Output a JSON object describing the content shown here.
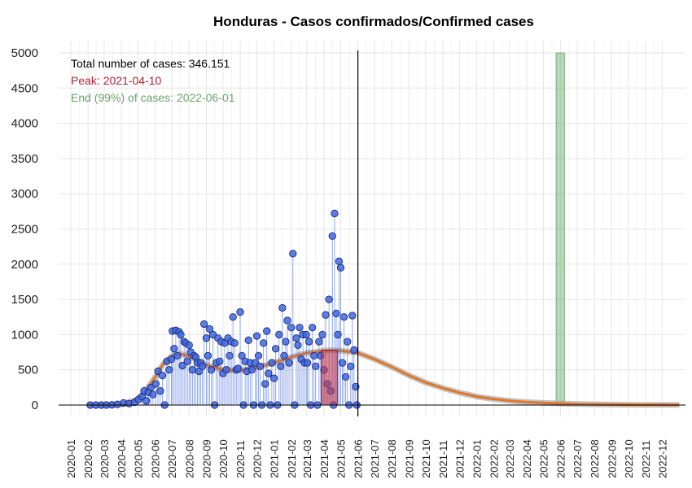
{
  "chart_data": {
    "type": "scatter",
    "title": "Honduras - Casos confirmados/Confirmed cases",
    "xlabel": "",
    "ylabel": "",
    "ylim": [
      0,
      5000
    ],
    "y_ticks": [
      "0",
      "500",
      "1000",
      "1500",
      "2000",
      "2500",
      "3000",
      "3500",
      "4000",
      "4500",
      "5000"
    ],
    "x_tick_labels": [
      "2020-01",
      "2020-02",
      "2020-03",
      "2020-04",
      "2020-05",
      "2020-06",
      "2020-07",
      "2020-08",
      "2020-09",
      "2020-10",
      "2020-11",
      "2020-12",
      "2021-01",
      "2021-02",
      "2021-03",
      "2021-04",
      "2021-05",
      "2021-06",
      "2021-07",
      "2021-08",
      "2021-09",
      "2021-10",
      "2021-11",
      "2021-12",
      "2022-01",
      "2022-02",
      "2022-03",
      "2022-04",
      "2022-05",
      "2022-06",
      "2022-07",
      "2022-08",
      "2022-09",
      "2022-10",
      "2022-11",
      "2022-12"
    ],
    "grid": true,
    "annotations": {
      "total": "Total number of cases: 346.151",
      "peak": "Peak: 2021-04-10",
      "end": "End (99%) of cases: 2022-06-01"
    },
    "colors": {
      "points_fill": "#4169e1",
      "points_stroke": "#1a2a7a",
      "fit_line": "#e0762b",
      "fit_band": "#a9a9a9",
      "peak_band": "#c0394b",
      "end_band": "#7fb77e",
      "today_line": "#000000",
      "peak_text": "#b22234",
      "end_text": "#6aa36a"
    },
    "today_marker": "2021-06-01",
    "peak_band_range": [
      "2021-03-27",
      "2021-04-25"
    ],
    "end_band_range": [
      "2022-05-24",
      "2022-06-08"
    ],
    "series": [
      {
        "type": "scatter",
        "points": [
          [
            "2020-02-05",
            0
          ],
          [
            "2020-02-15",
            0
          ],
          [
            "2020-02-25",
            0
          ],
          [
            "2020-03-05",
            0
          ],
          [
            "2020-03-15",
            3
          ],
          [
            "2020-03-25",
            10
          ],
          [
            "2020-04-05",
            30
          ],
          [
            "2020-04-15",
            20
          ],
          [
            "2020-04-25",
            40
          ],
          [
            "2020-05-02",
            80
          ],
          [
            "2020-05-08",
            120
          ],
          [
            "2020-05-12",
            200
          ],
          [
            "2020-05-16",
            60
          ],
          [
            "2020-05-20",
            180
          ],
          [
            "2020-05-24",
            250
          ],
          [
            "2020-05-28",
            150
          ],
          [
            "2020-06-02",
            300
          ],
          [
            "2020-06-06",
            480
          ],
          [
            "2020-06-10",
            200
          ],
          [
            "2020-06-14",
            420
          ],
          [
            "2020-06-18",
            0
          ],
          [
            "2020-06-22",
            620
          ],
          [
            "2020-06-26",
            500
          ],
          [
            "2020-06-30",
            650
          ],
          [
            "2020-07-02",
            1050
          ],
          [
            "2020-07-05",
            800
          ],
          [
            "2020-07-08",
            1060
          ],
          [
            "2020-07-11",
            700
          ],
          [
            "2020-07-14",
            1040
          ],
          [
            "2020-07-17",
            1000
          ],
          [
            "2020-07-20",
            560
          ],
          [
            "2020-07-23",
            900
          ],
          [
            "2020-07-26",
            880
          ],
          [
            "2020-07-29",
            620
          ],
          [
            "2020-08-01",
            850
          ],
          [
            "2020-08-04",
            750
          ],
          [
            "2020-08-07",
            500
          ],
          [
            "2020-08-10",
            700
          ],
          [
            "2020-08-13",
            680
          ],
          [
            "2020-08-16",
            600
          ],
          [
            "2020-08-19",
            480
          ],
          [
            "2020-08-22",
            600
          ],
          [
            "2020-08-25",
            550
          ],
          [
            "2020-08-28",
            1150
          ],
          [
            "2020-09-01",
            950
          ],
          [
            "2020-09-04",
            700
          ],
          [
            "2020-09-07",
            1080
          ],
          [
            "2020-09-10",
            500
          ],
          [
            "2020-09-13",
            1000
          ],
          [
            "2020-09-16",
            0
          ],
          [
            "2020-09-19",
            600
          ],
          [
            "2020-09-22",
            950
          ],
          [
            "2020-09-25",
            620
          ],
          [
            "2020-09-28",
            900
          ],
          [
            "2020-10-01",
            450
          ],
          [
            "2020-10-04",
            880
          ],
          [
            "2020-10-07",
            500
          ],
          [
            "2020-10-10",
            950
          ],
          [
            "2020-10-13",
            700
          ],
          [
            "2020-10-16",
            900
          ],
          [
            "2020-10-19",
            1250
          ],
          [
            "2020-10-22",
            880
          ],
          [
            "2020-10-25",
            500
          ],
          [
            "2020-10-28",
            520
          ],
          [
            "2020-11-01",
            1320
          ],
          [
            "2020-11-04",
            700
          ],
          [
            "2020-11-07",
            0
          ],
          [
            "2020-11-10",
            620
          ],
          [
            "2020-11-13",
            480
          ],
          [
            "2020-11-16",
            920
          ],
          [
            "2020-11-19",
            600
          ],
          [
            "2020-11-22",
            500
          ],
          [
            "2020-11-25",
            0
          ],
          [
            "2020-11-28",
            600
          ],
          [
            "2020-12-01",
            980
          ],
          [
            "2020-12-04",
            700
          ],
          [
            "2020-12-07",
            550
          ],
          [
            "2020-12-10",
            0
          ],
          [
            "2020-12-13",
            880
          ],
          [
            "2020-12-16",
            300
          ],
          [
            "2020-12-19",
            1050
          ],
          [
            "2020-12-22",
            450
          ],
          [
            "2020-12-25",
            0
          ],
          [
            "2020-12-28",
            600
          ],
          [
            "2021-01-01",
            380
          ],
          [
            "2021-01-04",
            800
          ],
          [
            "2021-01-07",
            0
          ],
          [
            "2021-01-10",
            1000
          ],
          [
            "2021-01-13",
            550
          ],
          [
            "2021-01-16",
            1380
          ],
          [
            "2021-01-19",
            700
          ],
          [
            "2021-01-22",
            900
          ],
          [
            "2021-01-25",
            1200
          ],
          [
            "2021-01-28",
            600
          ],
          [
            "2021-02-01",
            1100
          ],
          [
            "2021-02-04",
            2150
          ],
          [
            "2021-02-07",
            0
          ],
          [
            "2021-02-10",
            950
          ],
          [
            "2021-02-13",
            850
          ],
          [
            "2021-02-16",
            1100
          ],
          [
            "2021-02-19",
            650
          ],
          [
            "2021-02-22",
            1000
          ],
          [
            "2021-02-25",
            600
          ],
          [
            "2021-02-28",
            1000
          ],
          [
            "2021-03-02",
            600
          ],
          [
            "2021-03-05",
            900
          ],
          [
            "2021-03-08",
            0
          ],
          [
            "2021-03-11",
            1100
          ],
          [
            "2021-03-14",
            700
          ],
          [
            "2021-03-17",
            550
          ],
          [
            "2021-03-20",
            0
          ],
          [
            "2021-03-23",
            900
          ],
          [
            "2021-03-26",
            700
          ],
          [
            "2021-03-29",
            1000
          ],
          [
            "2021-04-01",
            500
          ],
          [
            "2021-04-04",
            1280
          ],
          [
            "2021-04-07",
            300
          ],
          [
            "2021-04-10",
            1500
          ],
          [
            "2021-04-13",
            200
          ],
          [
            "2021-04-16",
            2400
          ],
          [
            "2021-04-18",
            0
          ],
          [
            "2021-04-20",
            2720
          ],
          [
            "2021-04-23",
            1300
          ],
          [
            "2021-04-26",
            1000
          ],
          [
            "2021-04-28",
            2040
          ],
          [
            "2021-05-01",
            1950
          ],
          [
            "2021-05-04",
            600
          ],
          [
            "2021-05-07",
            1250
          ],
          [
            "2021-05-10",
            400
          ],
          [
            "2021-05-13",
            900
          ],
          [
            "2021-05-16",
            0
          ],
          [
            "2021-05-19",
            550
          ],
          [
            "2021-05-22",
            1270
          ],
          [
            "2021-05-25",
            780
          ],
          [
            "2021-05-28",
            260
          ],
          [
            "2021-05-30",
            0
          ]
        ]
      },
      {
        "type": "line",
        "name": "",
        "points": [
          [
            "2020-02-01",
            0
          ],
          [
            "2020-03-01",
            0
          ],
          [
            "2020-04-01",
            10
          ],
          [
            "2020-05-01",
            80
          ],
          [
            "2020-05-15",
            200
          ],
          [
            "2020-06-01",
            400
          ],
          [
            "2020-06-15",
            580
          ],
          [
            "2020-07-01",
            700
          ],
          [
            "2020-07-15",
            730
          ],
          [
            "2020-08-01",
            690
          ],
          [
            "2020-09-01",
            570
          ],
          [
            "2020-10-01",
            500
          ],
          [
            "2020-11-01",
            490
          ],
          [
            "2020-12-01",
            530
          ],
          [
            "2021-01-01",
            600
          ],
          [
            "2021-02-01",
            680
          ],
          [
            "2021-03-01",
            740
          ],
          [
            "2021-04-01",
            770
          ],
          [
            "2021-04-15",
            778
          ],
          [
            "2021-05-01",
            770
          ],
          [
            "2021-06-01",
            740
          ],
          [
            "2021-07-01",
            650
          ],
          [
            "2021-08-01",
            540
          ],
          [
            "2021-09-01",
            420
          ],
          [
            "2021-10-01",
            320
          ],
          [
            "2021-11-01",
            240
          ],
          [
            "2021-12-01",
            175
          ],
          [
            "2022-01-01",
            120
          ],
          [
            "2022-02-01",
            85
          ],
          [
            "2022-03-01",
            60
          ],
          [
            "2022-04-01",
            42
          ],
          [
            "2022-05-01",
            30
          ],
          [
            "2022-06-01",
            22
          ],
          [
            "2022-07-01",
            15
          ],
          [
            "2022-08-01",
            10
          ],
          [
            "2022-09-01",
            7
          ],
          [
            "2022-10-01",
            5
          ],
          [
            "2022-11-01",
            3
          ],
          [
            "2022-12-01",
            2
          ],
          [
            "2023-01-01",
            1
          ]
        ]
      }
    ]
  }
}
